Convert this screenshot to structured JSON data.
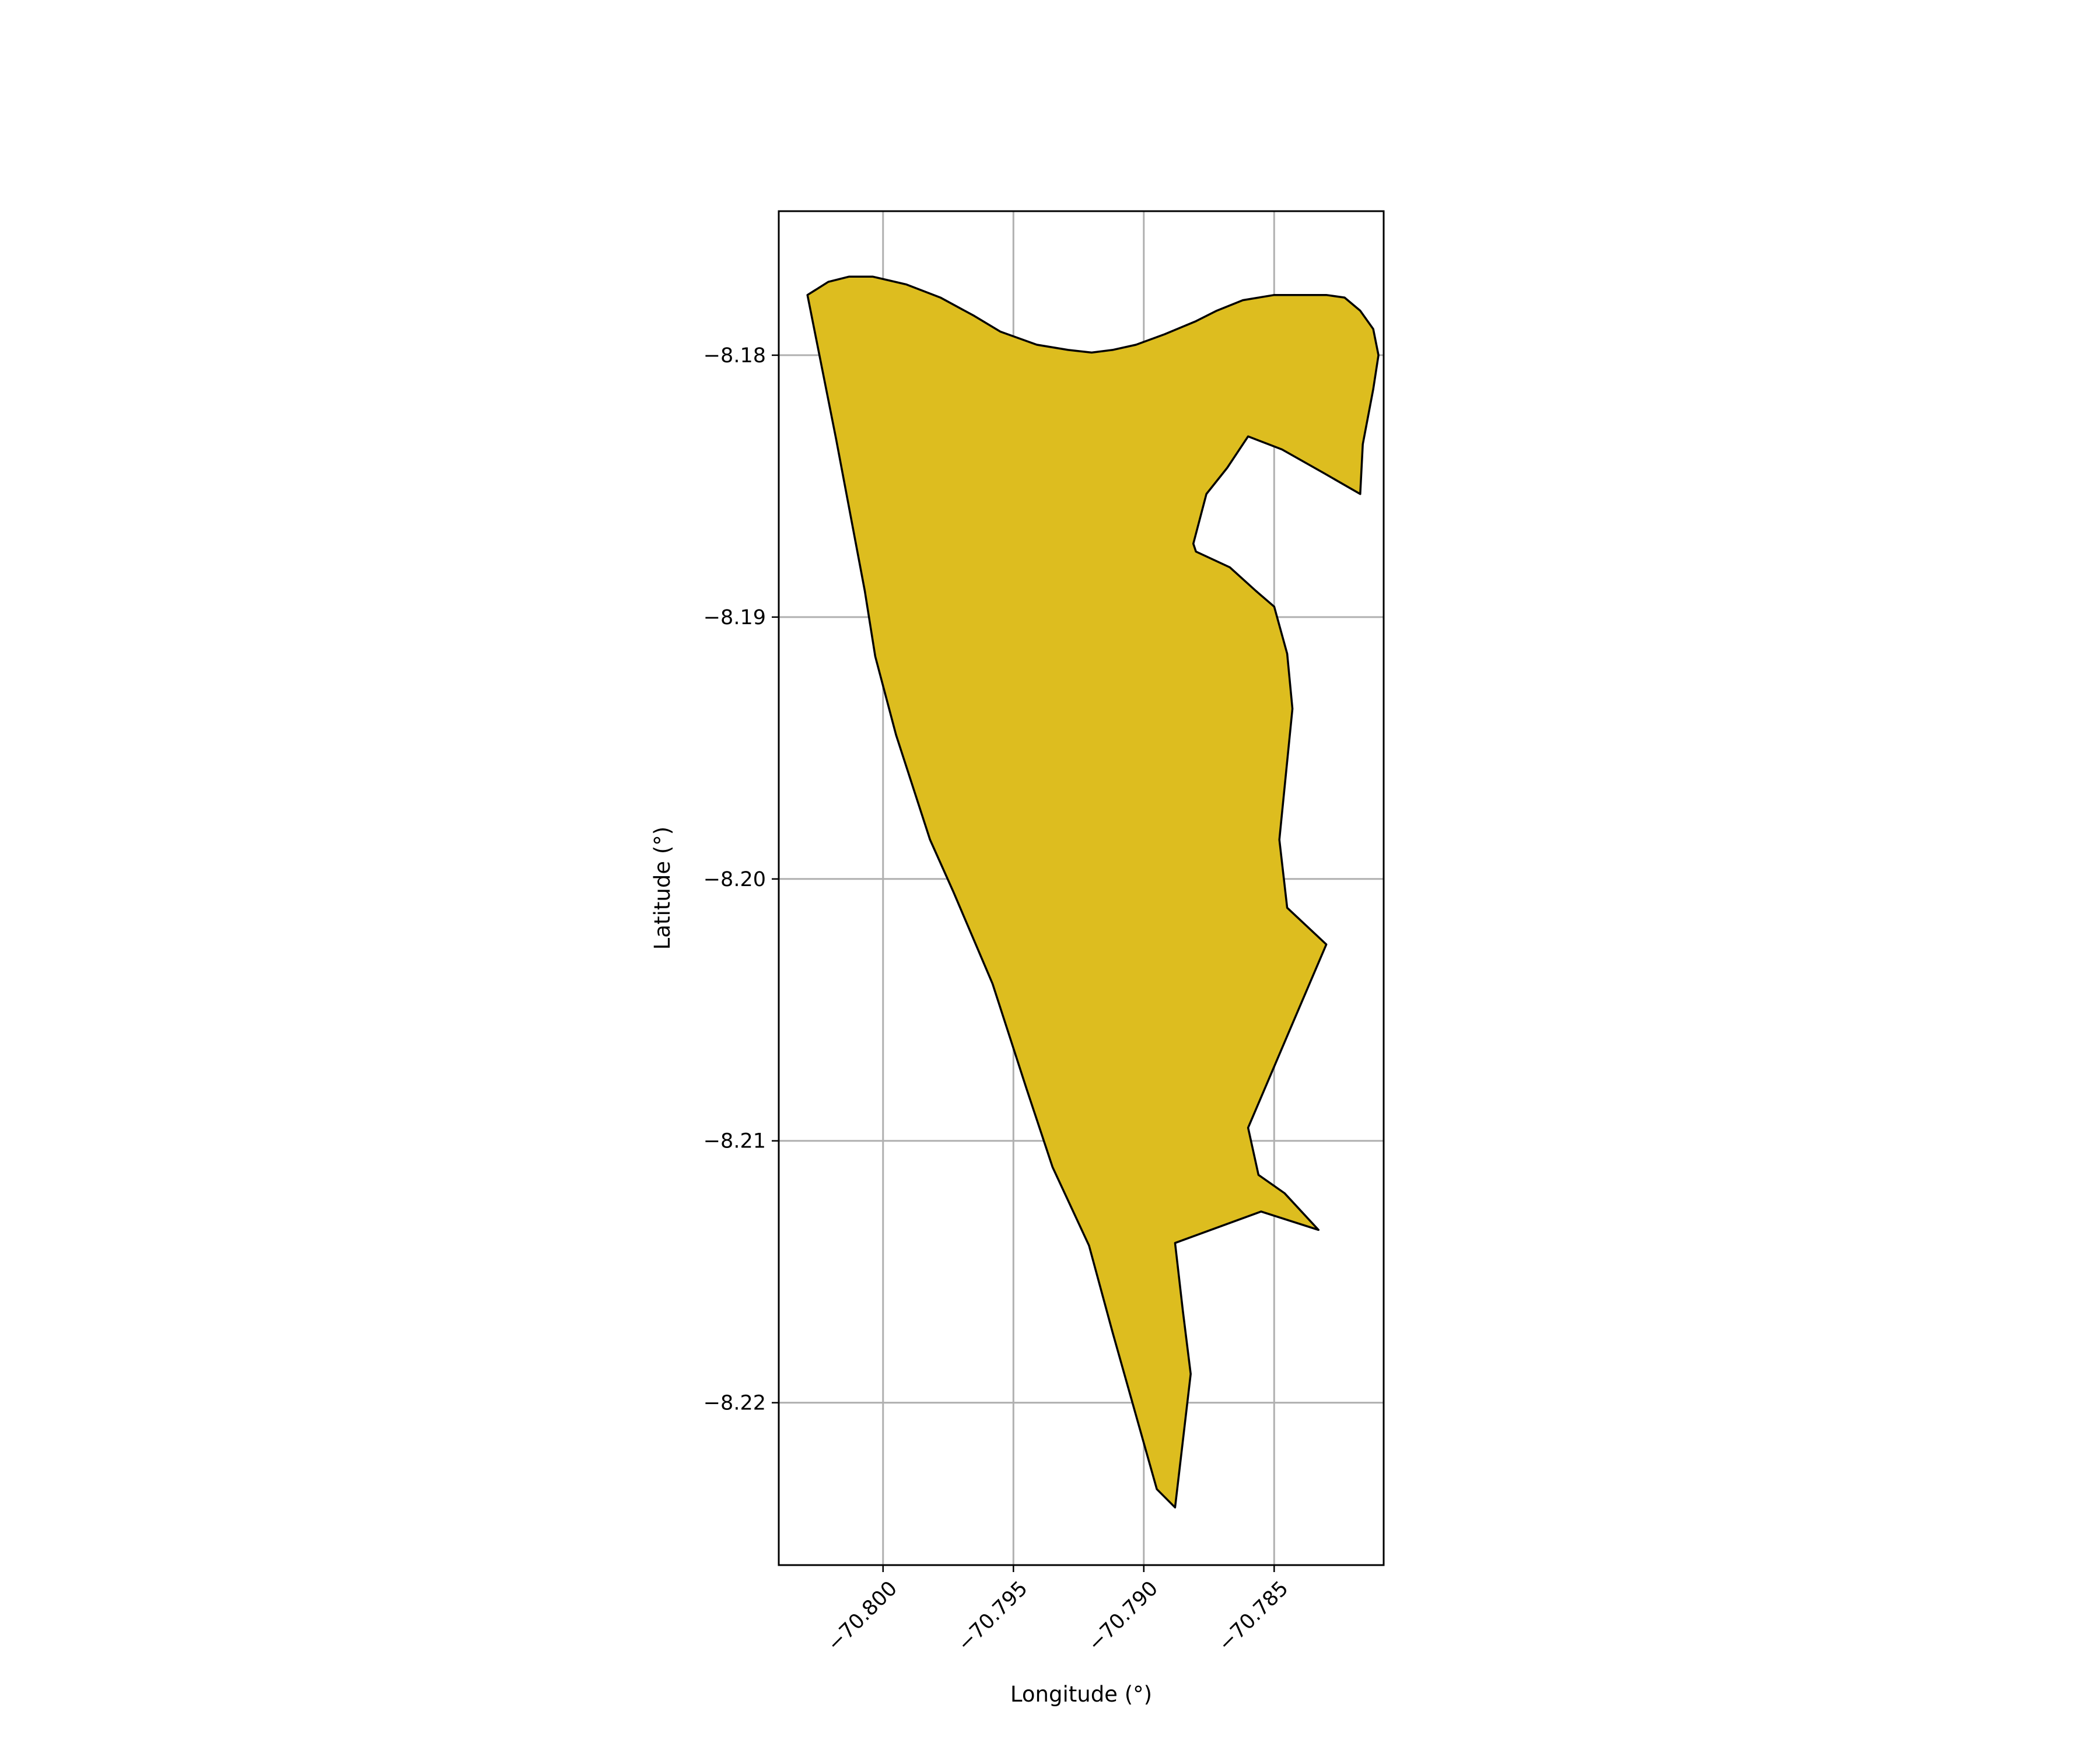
{
  "chart_data": {
    "type": "map",
    "title": "",
    "xlabel": "Longitude (°)",
    "ylabel": "Latitude (°)",
    "xlim": [
      -70.804,
      -70.7808
    ],
    "ylim": [
      -8.2262,
      -8.1745
    ],
    "grid": true,
    "x_ticks": [
      -70.8,
      -70.795,
      -70.79,
      -70.785
    ],
    "x_tick_labels": [
      "−70.800",
      "−70.795",
      "−70.790",
      "−70.785"
    ],
    "y_ticks": [
      -8.18,
      -8.19,
      -8.2,
      -8.21,
      -8.22
    ],
    "y_tick_labels": [
      "−8.18",
      "−8.19",
      "−8.20",
      "−8.21",
      "−8.22"
    ],
    "colors": {
      "fill": "#DDBD1F",
      "edge": "#000000",
      "grid": "#B0B0B0",
      "frame": "#000000"
    },
    "polygon": [
      [
        -70.8029,
        -8.1777
      ],
      [
        -70.8021,
        -8.1772
      ],
      [
        -70.8013,
        -8.177
      ],
      [
        -70.8004,
        -8.177
      ],
      [
        -70.7991,
        -8.1773
      ],
      [
        -70.7978,
        -8.1778
      ],
      [
        -70.7965,
        -8.1785
      ],
      [
        -70.7955,
        -8.1791
      ],
      [
        -70.7941,
        -8.1796
      ],
      [
        -70.7929,
        -8.1798
      ],
      [
        -70.792,
        -8.1799
      ],
      [
        -70.7912,
        -8.1798
      ],
      [
        -70.7903,
        -8.1796
      ],
      [
        -70.7892,
        -8.1792
      ],
      [
        -70.788,
        -8.1787
      ],
      [
        -70.7872,
        -8.1783
      ],
      [
        -70.7862,
        -8.1779
      ],
      [
        -70.785,
        -8.1777
      ],
      [
        -70.784,
        -8.1777
      ],
      [
        -70.783,
        -8.1777
      ],
      [
        -70.7823,
        -8.1778
      ],
      [
        -70.7817,
        -8.1783
      ],
      [
        -70.7812,
        -8.179
      ],
      [
        -70.781,
        -8.18
      ],
      [
        -70.7812,
        -8.1813
      ],
      [
        -70.7816,
        -8.1834
      ],
      [
        -70.7817,
        -8.1853
      ],
      [
        -70.7831,
        -8.1845
      ],
      [
        -70.7847,
        -8.1836
      ],
      [
        -70.786,
        -8.1831
      ],
      [
        -70.7868,
        -8.1843
      ],
      [
        -70.7876,
        -8.1853
      ],
      [
        -70.7881,
        -8.1872
      ],
      [
        -70.788,
        -8.1875
      ],
      [
        -70.7867,
        -8.1881
      ],
      [
        -70.7857,
        -8.189
      ],
      [
        -70.785,
        -8.1896
      ],
      [
        -70.7845,
        -8.1914
      ],
      [
        -70.7843,
        -8.1935
      ],
      [
        -70.7848,
        -8.1985
      ],
      [
        -70.7845,
        -8.2011
      ],
      [
        -70.783,
        -8.2025
      ],
      [
        -70.7845,
        -8.206
      ],
      [
        -70.786,
        -8.2095
      ],
      [
        -70.7856,
        -8.2113
      ],
      [
        -70.7846,
        -8.212
      ],
      [
        -70.7833,
        -8.2134
      ],
      [
        -70.7855,
        -8.2127
      ],
      [
        -70.7888,
        -8.2139
      ],
      [
        -70.7885,
        -8.2165
      ],
      [
        -70.7882,
        -8.2189
      ],
      [
        -70.7888,
        -8.224
      ],
      [
        -70.7895,
        -8.2233
      ],
      [
        -70.7912,
        -8.2173
      ],
      [
        -70.7921,
        -8.214
      ],
      [
        -70.7935,
        -8.211
      ],
      [
        -70.7945,
        -8.208
      ],
      [
        -70.7958,
        -8.204
      ],
      [
        -70.7973,
        -8.2005
      ],
      [
        -70.7982,
        -8.1985
      ],
      [
        -70.7995,
        -8.1945
      ],
      [
        -70.8003,
        -8.1915
      ],
      [
        -70.8007,
        -8.189
      ],
      [
        -70.8018,
        -8.1832
      ],
      [
        -70.8029,
        -8.1777
      ]
    ]
  }
}
